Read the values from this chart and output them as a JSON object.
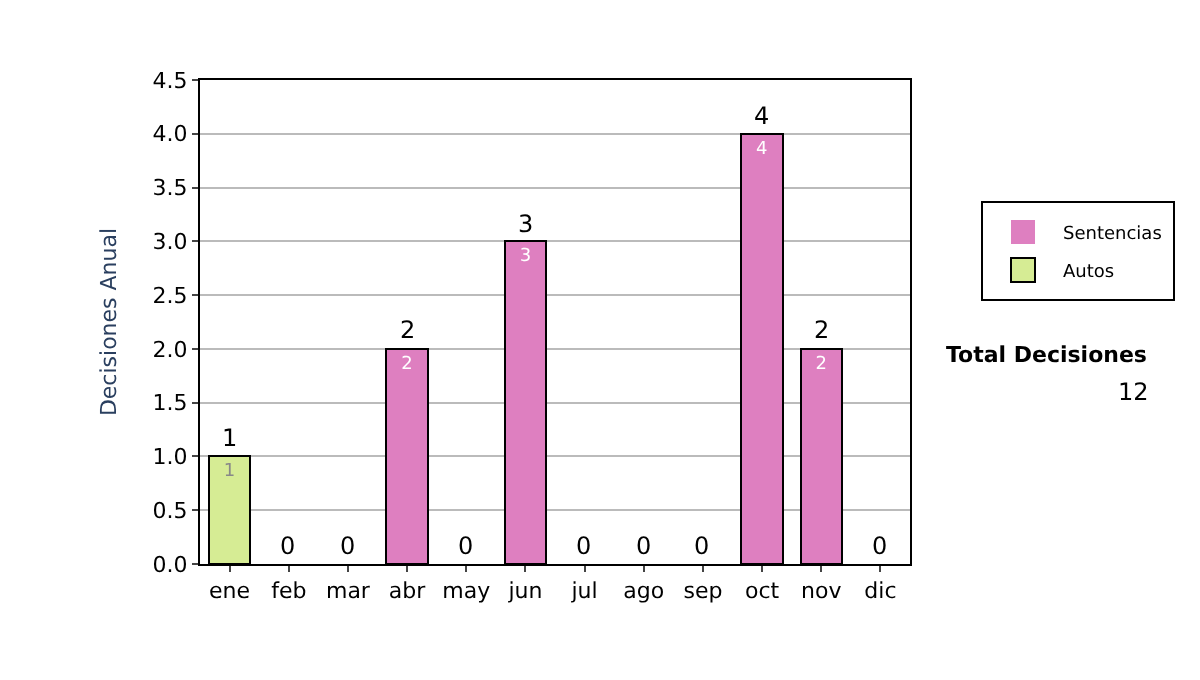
{
  "chart_data": {
    "type": "bar",
    "stacked": true,
    "ylabel": "Decisiones Anual",
    "categories": [
      "ene",
      "feb",
      "mar",
      "abr",
      "may",
      "jun",
      "jul",
      "ago",
      "sep",
      "oct",
      "nov",
      "dic"
    ],
    "series": [
      {
        "name": "Sentencias",
        "color": "#de7fc0",
        "values": [
          0,
          0,
          0,
          2,
          0,
          3,
          0,
          0,
          0,
          4,
          2,
          0
        ],
        "value_labels": [
          null,
          null,
          null,
          "2",
          null,
          "3",
          null,
          null,
          null,
          "4",
          "2",
          null
        ]
      },
      {
        "name": "Autos",
        "color": "#d6ec94",
        "values": [
          1,
          0,
          0,
          0,
          0,
          0,
          0,
          0,
          0,
          0,
          0,
          0
        ],
        "value_labels": [
          "1",
          null,
          null,
          null,
          null,
          null,
          null,
          null,
          null,
          null,
          null,
          null
        ]
      }
    ],
    "totals": [
      "1",
      "0",
      "0",
      "2",
      "0",
      "3",
      "0",
      "0",
      "0",
      "4",
      "2",
      "0"
    ],
    "ylim": [
      0,
      4.5
    ],
    "yticks": [
      {
        "value": 0,
        "label": "0.0"
      },
      {
        "value": 0.5,
        "label": "0.5"
      },
      {
        "value": 1,
        "label": "1.0"
      },
      {
        "value": 1.5,
        "label": "1.5"
      },
      {
        "value": 2,
        "label": "2.0"
      },
      {
        "value": 2.5,
        "label": "2.5"
      },
      {
        "value": 3,
        "label": "3.0"
      },
      {
        "value": 3.5,
        "label": "3.5"
      },
      {
        "value": 4,
        "label": "4.0"
      },
      {
        "value": 4.5,
        "label": "4.5"
      }
    ],
    "grid": "y",
    "legend": "right",
    "annotations": [
      "Total Decisiones",
      "12"
    ]
  }
}
